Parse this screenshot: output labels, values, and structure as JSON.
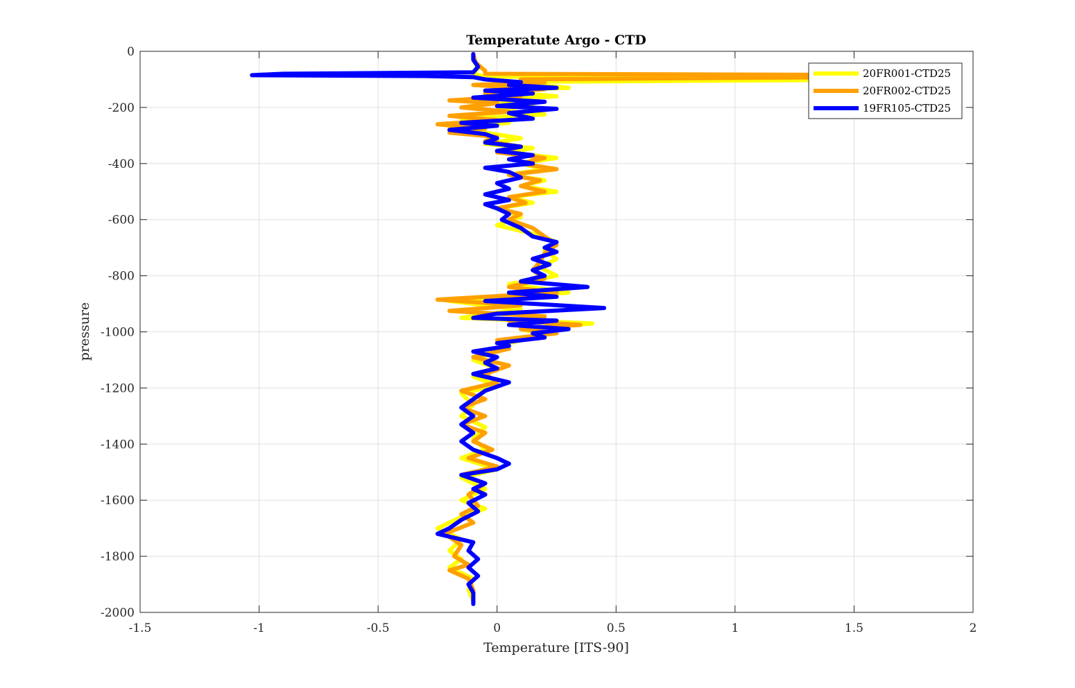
{
  "chart_data": {
    "type": "line",
    "title": "Temperatute Argo - CTD",
    "xlabel": "Temperature [ITS-90]",
    "ylabel": "pressure",
    "xlim": [
      -1.5,
      2
    ],
    "ylim": [
      -2000,
      0
    ],
    "xticks": [
      -1.5,
      -1,
      -0.5,
      0,
      0.5,
      1,
      1.5,
      2
    ],
    "xtick_labels": [
      "-1.5",
      "-1",
      "-0.5",
      "0",
      "0.5",
      "1",
      "1.5",
      "2"
    ],
    "yticks": [
      0,
      -200,
      -400,
      -600,
      -800,
      -1000,
      -1200,
      -1400,
      -1600,
      -1800,
      -2000
    ],
    "ytick_labels": [
      "0",
      "-200",
      "-400",
      "-600",
      "-800",
      "-1000",
      "-1200",
      "-1400",
      "-1600",
      "-1800",
      "-2000"
    ],
    "grid": true,
    "legend_position": "top-right",
    "series": [
      {
        "name": "20FR001-CTD25",
        "color": "#FFFF00",
        "points": [
          [
            -0.1,
            -10
          ],
          [
            -0.1,
            -30
          ],
          [
            -0.08,
            -60
          ],
          [
            -0.1,
            -80
          ],
          [
            -0.05,
            -90
          ],
          [
            1.85,
            -100
          ],
          [
            0.2,
            -108
          ],
          [
            0.1,
            -115
          ],
          [
            0.3,
            -130
          ],
          [
            -0.05,
            -140
          ],
          [
            0.25,
            -160
          ],
          [
            -0.08,
            -175
          ],
          [
            0.15,
            -190
          ],
          [
            0.0,
            -210
          ],
          [
            0.2,
            -225
          ],
          [
            -0.15,
            -240
          ],
          [
            0.05,
            -255
          ],
          [
            -0.2,
            -270
          ],
          [
            -0.05,
            -290
          ],
          [
            0.1,
            -310
          ],
          [
            -0.05,
            -330
          ],
          [
            0.15,
            -345
          ],
          [
            0.05,
            -360
          ],
          [
            0.25,
            -380
          ],
          [
            0.1,
            -400
          ],
          [
            0.2,
            -420
          ],
          [
            0.05,
            -440
          ],
          [
            0.2,
            -460
          ],
          [
            0.1,
            -480
          ],
          [
            0.25,
            -500
          ],
          [
            0.05,
            -520
          ],
          [
            0.15,
            -540
          ],
          [
            0.0,
            -560
          ],
          [
            0.1,
            -590
          ],
          [
            0.0,
            -620
          ],
          [
            0.15,
            -650
          ],
          [
            0.25,
            -680
          ],
          [
            0.2,
            -710
          ],
          [
            0.25,
            -740
          ],
          [
            0.18,
            -770
          ],
          [
            0.25,
            -800
          ],
          [
            0.05,
            -830
          ],
          [
            0.3,
            -860
          ],
          [
            -0.2,
            -890
          ],
          [
            0.1,
            -920
          ],
          [
            -0.15,
            -950
          ],
          [
            0.4,
            -970
          ],
          [
            0.1,
            -990
          ],
          [
            0.2,
            -1010
          ],
          [
            0.05,
            -1040
          ],
          [
            0.0,
            -1070
          ],
          [
            -0.1,
            -1100
          ],
          [
            0.0,
            -1130
          ],
          [
            -0.1,
            -1160
          ],
          [
            0.0,
            -1190
          ],
          [
            -0.15,
            -1220
          ],
          [
            -0.1,
            -1260
          ],
          [
            -0.15,
            -1300
          ],
          [
            -0.05,
            -1340
          ],
          [
            -0.1,
            -1380
          ],
          [
            -0.05,
            -1420
          ],
          [
            -0.15,
            -1450
          ],
          [
            0.0,
            -1490
          ],
          [
            -0.15,
            -1520
          ],
          [
            -0.05,
            -1560
          ],
          [
            -0.15,
            -1600
          ],
          [
            -0.05,
            -1630
          ],
          [
            -0.15,
            -1660
          ],
          [
            -0.25,
            -1700
          ],
          [
            -0.15,
            -1740
          ],
          [
            -0.2,
            -1780
          ],
          [
            -0.15,
            -1810
          ],
          [
            -0.2,
            -1840
          ],
          [
            -0.1,
            -1880
          ],
          [
            -0.12,
            -1920
          ],
          [
            -0.1,
            -1960
          ]
        ]
      },
      {
        "name": "20FR002-CTD25",
        "color": "#FFA000",
        "points": [
          [
            -0.1,
            -10
          ],
          [
            -0.09,
            -40
          ],
          [
            -0.05,
            -70
          ],
          [
            -0.05,
            -80
          ],
          [
            1.9,
            -85
          ],
          [
            1.5,
            -92
          ],
          [
            0.1,
            -100
          ],
          [
            0.2,
            -110
          ],
          [
            -0.1,
            -120
          ],
          [
            0.2,
            -135
          ],
          [
            -0.05,
            -150
          ],
          [
            0.1,
            -160
          ],
          [
            -0.2,
            -175
          ],
          [
            0.0,
            -185
          ],
          [
            -0.15,
            -200
          ],
          [
            0.05,
            -215
          ],
          [
            -0.2,
            -230
          ],
          [
            0.0,
            -245
          ],
          [
            -0.25,
            -260
          ],
          [
            -0.05,
            -275
          ],
          [
            -0.2,
            -290
          ],
          [
            0.0,
            -305
          ],
          [
            -0.05,
            -320
          ],
          [
            0.1,
            -340
          ],
          [
            0.0,
            -360
          ],
          [
            0.2,
            -380
          ],
          [
            0.1,
            -400
          ],
          [
            0.25,
            -420
          ],
          [
            0.05,
            -440
          ],
          [
            0.18,
            -460
          ],
          [
            0.1,
            -480
          ],
          [
            0.2,
            -500
          ],
          [
            0.05,
            -520
          ],
          [
            0.12,
            -540
          ],
          [
            0.0,
            -560
          ],
          [
            0.1,
            -580
          ],
          [
            0.05,
            -600
          ],
          [
            0.15,
            -630
          ],
          [
            0.2,
            -660
          ],
          [
            0.25,
            -690
          ],
          [
            0.2,
            -720
          ],
          [
            0.18,
            -750
          ],
          [
            0.15,
            -780
          ],
          [
            0.2,
            -810
          ],
          [
            0.05,
            -840
          ],
          [
            0.25,
            -860
          ],
          [
            -0.25,
            -885
          ],
          [
            0.1,
            -905
          ],
          [
            -0.2,
            -925
          ],
          [
            0.2,
            -945
          ],
          [
            0.05,
            -960
          ],
          [
            0.35,
            -975
          ],
          [
            0.1,
            -990
          ],
          [
            0.25,
            -1005
          ],
          [
            0.0,
            -1030
          ],
          [
            0.05,
            -1060
          ],
          [
            -0.1,
            -1090
          ],
          [
            0.05,
            -1120
          ],
          [
            -0.05,
            -1150
          ],
          [
            0.0,
            -1180
          ],
          [
            -0.15,
            -1210
          ],
          [
            -0.05,
            -1240
          ],
          [
            -0.15,
            -1270
          ],
          [
            -0.05,
            -1300
          ],
          [
            -0.15,
            -1330
          ],
          [
            -0.05,
            -1360
          ],
          [
            -0.1,
            -1390
          ],
          [
            -0.02,
            -1420
          ],
          [
            -0.12,
            -1450
          ],
          [
            0.0,
            -1480
          ],
          [
            -0.15,
            -1510
          ],
          [
            -0.05,
            -1540
          ],
          [
            -0.12,
            -1580
          ],
          [
            -0.08,
            -1620
          ],
          [
            -0.15,
            -1650
          ],
          [
            -0.1,
            -1680
          ],
          [
            -0.22,
            -1720
          ],
          [
            -0.15,
            -1760
          ],
          [
            -0.18,
            -1800
          ],
          [
            -0.12,
            -1830
          ],
          [
            -0.2,
            -1850
          ],
          [
            -0.12,
            -1880
          ],
          [
            -0.1,
            -1920
          ],
          [
            -0.1,
            -1960
          ]
        ]
      },
      {
        "name": "19FR105-CTD25",
        "color": "#0000FF",
        "points": [
          [
            -0.1,
            -10
          ],
          [
            -0.1,
            -30
          ],
          [
            -0.08,
            -55
          ],
          [
            -0.1,
            -75
          ],
          [
            -0.9,
            -80
          ],
          [
            -1.03,
            -85
          ],
          [
            -0.3,
            -88
          ],
          [
            -0.1,
            -92
          ],
          [
            -0.05,
            -100
          ],
          [
            0.1,
            -110
          ],
          [
            0.05,
            -120
          ],
          [
            0.25,
            -130
          ],
          [
            -0.05,
            -140
          ],
          [
            0.15,
            -150
          ],
          [
            -0.1,
            -165
          ],
          [
            0.2,
            -180
          ],
          [
            0.0,
            -195
          ],
          [
            0.25,
            -205
          ],
          [
            0.05,
            -220
          ],
          [
            0.15,
            -240
          ],
          [
            -0.15,
            -255
          ],
          [
            0.0,
            -265
          ],
          [
            -0.2,
            -280
          ],
          [
            -0.05,
            -295
          ],
          [
            0.0,
            -310
          ],
          [
            -0.05,
            -325
          ],
          [
            0.1,
            -340
          ],
          [
            0.0,
            -355
          ],
          [
            0.15,
            -370
          ],
          [
            0.05,
            -385
          ],
          [
            0.15,
            -400
          ],
          [
            -0.05,
            -415
          ],
          [
            0.05,
            -430
          ],
          [
            0.1,
            -450
          ],
          [
            0.0,
            -470
          ],
          [
            0.05,
            -490
          ],
          [
            -0.05,
            -510
          ],
          [
            0.05,
            -530
          ],
          [
            -0.05,
            -545
          ],
          [
            0.0,
            -560
          ],
          [
            0.05,
            -580
          ],
          [
            0.02,
            -600
          ],
          [
            0.1,
            -630
          ],
          [
            0.15,
            -660
          ],
          [
            0.25,
            -680
          ],
          [
            0.2,
            -700
          ],
          [
            0.25,
            -715
          ],
          [
            0.15,
            -740
          ],
          [
            0.22,
            -760
          ],
          [
            0.15,
            -780
          ],
          [
            0.2,
            -800
          ],
          [
            0.1,
            -820
          ],
          [
            0.38,
            -840
          ],
          [
            0.05,
            -860
          ],
          [
            0.25,
            -875
          ],
          [
            -0.05,
            -890
          ],
          [
            0.45,
            -915
          ],
          [
            0.0,
            -935
          ],
          [
            -0.1,
            -950
          ],
          [
            0.25,
            -960
          ],
          [
            0.05,
            -975
          ],
          [
            0.3,
            -990
          ],
          [
            0.15,
            -1005
          ],
          [
            0.2,
            -1020
          ],
          [
            0.0,
            -1040
          ],
          [
            0.05,
            -1050
          ],
          [
            -0.1,
            -1070
          ],
          [
            0.0,
            -1090
          ],
          [
            -0.05,
            -1110
          ],
          [
            0.0,
            -1130
          ],
          [
            -0.1,
            -1150
          ],
          [
            0.05,
            -1180
          ],
          [
            -0.05,
            -1210
          ],
          [
            -0.1,
            -1240
          ],
          [
            -0.15,
            -1270
          ],
          [
            -0.1,
            -1300
          ],
          [
            -0.15,
            -1330
          ],
          [
            -0.1,
            -1360
          ],
          [
            -0.15,
            -1390
          ],
          [
            -0.1,
            -1420
          ],
          [
            0.0,
            -1450
          ],
          [
            0.05,
            -1470
          ],
          [
            0.0,
            -1490
          ],
          [
            -0.15,
            -1510
          ],
          [
            -0.05,
            -1540
          ],
          [
            -0.1,
            -1560
          ],
          [
            -0.05,
            -1580
          ],
          [
            -0.12,
            -1610
          ],
          [
            -0.08,
            -1640
          ],
          [
            -0.15,
            -1670
          ],
          [
            -0.2,
            -1700
          ],
          [
            -0.25,
            -1720
          ],
          [
            -0.1,
            -1750
          ],
          [
            -0.12,
            -1780
          ],
          [
            -0.08,
            -1810
          ],
          [
            -0.12,
            -1840
          ],
          [
            -0.08,
            -1870
          ],
          [
            -0.12,
            -1900
          ],
          [
            -0.1,
            -1930
          ],
          [
            -0.1,
            -1970
          ]
        ]
      }
    ]
  }
}
